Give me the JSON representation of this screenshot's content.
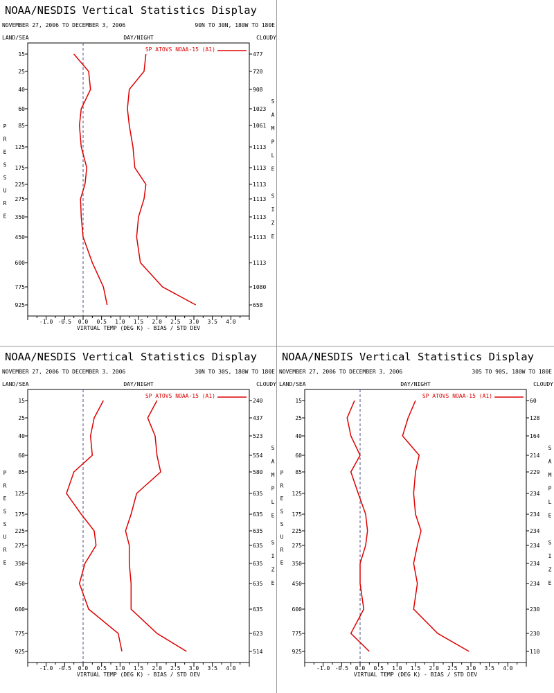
{
  "header": {
    "title": "NOAA/NESDIS Vertical Statistics Display",
    "date_range": "NOVEMBER 27, 2006 TO DECEMBER 3, 2006",
    "left_label": "LAND/SEA",
    "center_label": "DAY/NIGHT",
    "right_label": "CLOUDY",
    "ylabel": "PRESSURE",
    "ylabel2": "SAMPLE SIZE",
    "xlabel": "VIRTUAL TEMP (DEG K) - BIAS / STD DEV"
  },
  "colors": {
    "series": "#dd0000",
    "zero_line": "#4d4d80",
    "axes": "#000000"
  },
  "chart_data": [
    {
      "type": "line",
      "region": "90N TO 30N, 180W TO 180E",
      "legend": "SP ATOVS NOAA-15 (A1)",
      "xlim": [
        -1.5,
        4.5
      ],
      "x_ticks": [
        "-1.0",
        "-0.5",
        "0.0",
        "0.5",
        "1.0",
        "1.5",
        "2.0",
        "2.5",
        "3.0",
        "3.5",
        "4.0"
      ],
      "pressure_levels": [
        "15",
        "25",
        "40",
        "60",
        "85",
        "125",
        "175",
        "225",
        "275",
        "350",
        "450",
        "600",
        "775",
        "925"
      ],
      "bias": [
        -0.25,
        0.15,
        0.2,
        -0.05,
        -0.1,
        -0.05,
        0.1,
        0.05,
        -0.07,
        -0.05,
        0.0,
        0.25,
        0.55,
        0.65
      ],
      "std_dev": [
        1.7,
        1.65,
        1.25,
        1.2,
        1.25,
        1.35,
        1.4,
        1.7,
        1.65,
        1.5,
        1.45,
        1.55,
        2.15,
        3.05
      ],
      "sample_size": [
        "477",
        "720",
        "908",
        "1023",
        "1061",
        "1113",
        "1113",
        "1113",
        "1113",
        "1113",
        "1113",
        "1113",
        "1080",
        "658"
      ]
    },
    {
      "type": "line",
      "region": "30N TO 30S, 180W TO 180E",
      "legend": "SP ATOVS NOAA-15 (A1)",
      "xlim": [
        -1.5,
        4.5
      ],
      "x_ticks": [
        "-1.0",
        "-0.5",
        "0.0",
        "0.5",
        "1.0",
        "1.5",
        "2.0",
        "2.5",
        "3.0",
        "3.5",
        "4.0"
      ],
      "pressure_levels": [
        "15",
        "25",
        "40",
        "60",
        "85",
        "125",
        "175",
        "225",
        "275",
        "350",
        "450",
        "600",
        "775",
        "925"
      ],
      "bias": [
        0.55,
        0.3,
        0.2,
        0.25,
        -0.25,
        -0.45,
        -0.05,
        0.3,
        0.35,
        0.05,
        -0.1,
        0.15,
        0.95,
        1.05
      ],
      "std_dev": [
        2.0,
        1.75,
        1.95,
        2.0,
        2.1,
        1.45,
        1.3,
        1.15,
        1.25,
        1.25,
        1.3,
        1.3,
        2.0,
        2.8
      ],
      "sample_size": [
        "240",
        "437",
        "523",
        "554",
        "580",
        "635",
        "635",
        "635",
        "635",
        "635",
        "635",
        "635",
        "623",
        "514"
      ]
    },
    {
      "type": "line",
      "region": "30S TO 90S, 180W TO 180E",
      "legend": "SP ATOVS NOAA-15 (A1)",
      "xlim": [
        -1.5,
        4.5
      ],
      "x_ticks": [
        "-1.0",
        "-0.5",
        "0.0",
        "0.5",
        "1.0",
        "1.5",
        "2.0",
        "2.5",
        "3.0",
        "3.5",
        "4.0"
      ],
      "pressure_levels": [
        "15",
        "25",
        "40",
        "60",
        "85",
        "125",
        "175",
        "225",
        "275",
        "350",
        "450",
        "600",
        "775",
        "925"
      ],
      "bias": [
        -0.15,
        -0.35,
        -0.25,
        0.0,
        -0.25,
        -0.05,
        0.15,
        0.2,
        0.15,
        0.0,
        0.0,
        0.1,
        -0.25,
        0.25
      ],
      "std_dev": [
        1.5,
        1.3,
        1.15,
        1.6,
        1.5,
        1.45,
        1.5,
        1.65,
        1.55,
        1.45,
        1.55,
        1.45,
        2.1,
        2.95
      ],
      "sample_size": [
        "60",
        "128",
        "164",
        "214",
        "229",
        "234",
        "234",
        "234",
        "234",
        "234",
        "234",
        "230",
        "230",
        "110"
      ]
    }
  ]
}
